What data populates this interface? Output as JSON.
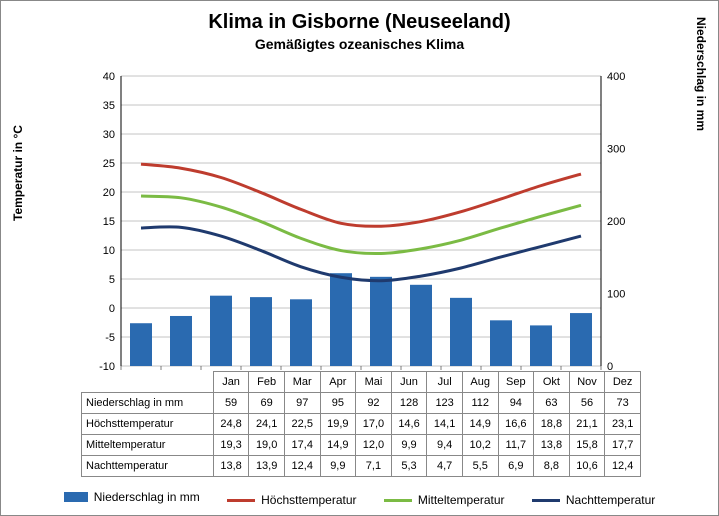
{
  "title": "Klima in Gisborne (Neuseeland)",
  "subtitle": "Gemäßigtes ozeanisches Klima",
  "ylabel_left": "Temperatur in °C",
  "ylabel_right": "Niederschlag in mm",
  "chart": {
    "type": "combo-bar-line",
    "months": [
      "Jan",
      "Feb",
      "Mar",
      "Apr",
      "Mai",
      "Jun",
      "Jul",
      "Aug",
      "Sep",
      "Okt",
      "Nov",
      "Dez"
    ],
    "ylim_temp": [
      -10,
      40
    ],
    "ytick_temp": [
      -10,
      -5,
      0,
      5,
      10,
      15,
      20,
      25,
      30,
      35,
      40
    ],
    "ylim_precip": [
      0,
      400
    ],
    "ytick_precip": [
      0,
      100,
      200,
      300,
      400
    ],
    "bar_color": "#2a6ab0",
    "line_colors": {
      "hoechst": "#be3c2e",
      "mittel": "#7bbb44",
      "nacht": "#1f3a6e"
    },
    "line_width": 3,
    "grid_color": "#888888",
    "background": "#ffffff",
    "precip": [
      59,
      69,
      97,
      95,
      92,
      128,
      123,
      112,
      94,
      63,
      56,
      73
    ],
    "hoechst": [
      24.8,
      24.1,
      22.5,
      19.9,
      17.0,
      14.6,
      14.1,
      14.9,
      16.6,
      18.8,
      21.1,
      23.1
    ],
    "mittel": [
      19.3,
      19.0,
      17.4,
      14.9,
      12.0,
      9.9,
      9.4,
      10.2,
      11.7,
      13.8,
      15.8,
      17.7
    ],
    "nacht": [
      13.8,
      13.9,
      12.4,
      9.9,
      7.1,
      5.3,
      4.7,
      5.5,
      6.9,
      8.8,
      10.6,
      12.4
    ]
  },
  "table": {
    "row1_label": "Niederschlag in mm",
    "row1": [
      "59",
      "69",
      "97",
      "95",
      "92",
      "128",
      "123",
      "112",
      "94",
      "63",
      "56",
      "73"
    ],
    "row2_label": "Höchsttemperatur",
    "row2": [
      "24,8",
      "24,1",
      "22,5",
      "19,9",
      "17,0",
      "14,6",
      "14,1",
      "14,9",
      "16,6",
      "18,8",
      "21,1",
      "23,1"
    ],
    "row3_label": "Mitteltemperatur",
    "row3": [
      "19,3",
      "19,0",
      "17,4",
      "14,9",
      "12,0",
      "9,9",
      "9,4",
      "10,2",
      "11,7",
      "13,8",
      "15,8",
      "17,7"
    ],
    "row4_label": "Nachttemperatur",
    "row4": [
      "13,8",
      "13,9",
      "12,4",
      "9,9",
      "7,1",
      "5,3",
      "4,7",
      "5,5",
      "6,9",
      "8,8",
      "10,6",
      "12,4"
    ]
  },
  "legend": {
    "precip": "Niederschlag in mm",
    "hoechst": "Höchsttemperatur",
    "mittel": "Mitteltemperatur",
    "nacht": "Nachttemperatur"
  }
}
